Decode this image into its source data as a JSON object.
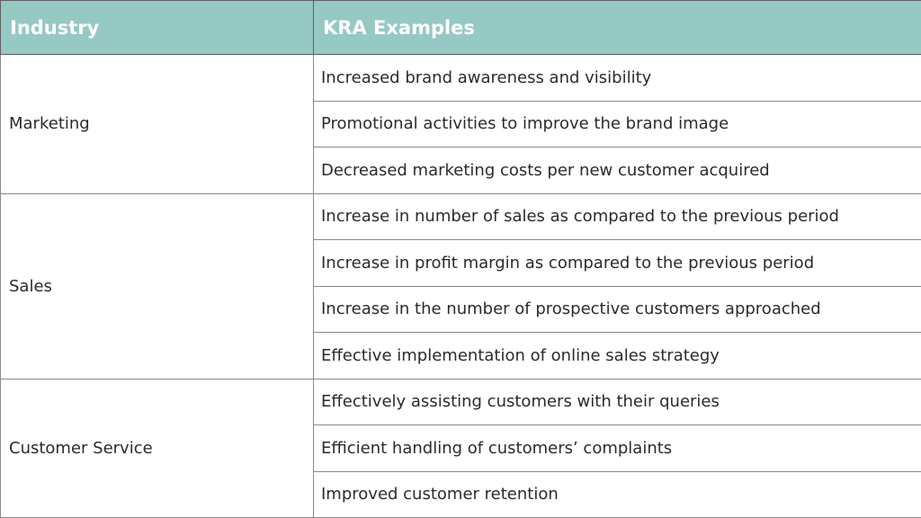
{
  "table": {
    "headers": [
      "Industry",
      "KRA Examples"
    ],
    "groups": [
      {
        "industry": "Marketing",
        "kras": [
          "Increased brand awareness and visibility",
          "Promotional activities to improve the brand image",
          "Decreased marketing costs per new customer acquired"
        ]
      },
      {
        "industry": "Sales",
        "kras": [
          "Increase in number of sales as compared to the previous period",
          "Increase in profit margin as compared to the previous period",
          "Increase in the number of prospective customers approached",
          "Effective implementation of online sales strategy"
        ]
      },
      {
        "industry": "Customer Service",
        "kras": [
          "Effectively assisting customers with their queries",
          "Efficient handling of customers’ complaints",
          "Improved customer retention"
        ]
      }
    ],
    "colors": {
      "header_bg": "#96c8c4",
      "header_text": "#ffffff",
      "body_text": "#2b2b2b",
      "border": "#8a8a8a"
    }
  }
}
